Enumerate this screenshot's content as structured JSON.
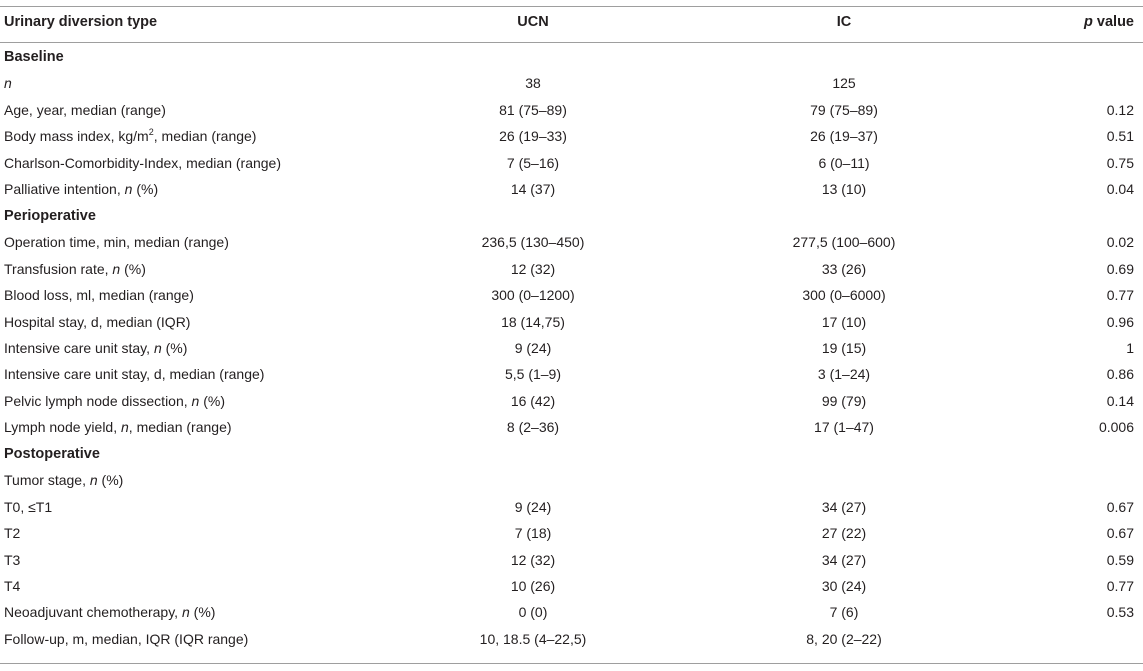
{
  "table": {
    "headers": {
      "col0": "Urinary diversion type",
      "col1": "UCN",
      "col2": "IC",
      "col3_pre": "p",
      "col3_post": " value"
    },
    "rows": [
      {
        "kind": "section",
        "label": "Baseline"
      },
      {
        "kind": "data",
        "label_pre": "",
        "label_it": "n",
        "label_post": "",
        "ucn": "38",
        "ic": "125",
        "p": ""
      },
      {
        "kind": "data",
        "label_pre": "Age, year, median (range)",
        "ucn": "81 (75–89)",
        "ic": "79 (75–89)",
        "p": "0.12"
      },
      {
        "kind": "data",
        "label_pre": "Body mass index, kg/m",
        "label_sup": "2",
        "label_post": ", median (range)",
        "ucn": "26 (19–33)",
        "ic": "26 (19–37)",
        "p": "0.51"
      },
      {
        "kind": "data",
        "label_pre": "Charlson-Comorbidity-Index, median (range)",
        "ucn": "7 (5–16)",
        "ic": "6 (0–11)",
        "p": "0.75"
      },
      {
        "kind": "data",
        "label_pre": "Palliative intention, ",
        "label_it": "n",
        "label_post": " (%)",
        "ucn": "14 (37)",
        "ic": "13 (10)",
        "p": "0.04"
      },
      {
        "kind": "section",
        "label": "Perioperative"
      },
      {
        "kind": "data",
        "label_pre": "Operation time, min, median (range)",
        "ucn": "236,5 (130–450)",
        "ic": "277,5 (100–600)",
        "p": "0.02"
      },
      {
        "kind": "data",
        "label_pre": "Transfusion rate, ",
        "label_it": "n",
        "label_post": " (%)",
        "ucn": "12 (32)",
        "ic": "33 (26)",
        "p": "0.69"
      },
      {
        "kind": "data",
        "label_pre": "Blood loss, ml, median (range)",
        "ucn": "300 (0–1200)",
        "ic": "300 (0–6000)",
        "p": "0.77"
      },
      {
        "kind": "data",
        "label_pre": "Hospital stay, d, median (IQR)",
        "ucn": "18 (14,75)",
        "ic": "17 (10)",
        "p": "0.96"
      },
      {
        "kind": "data",
        "label_pre": "Intensive care unit stay, ",
        "label_it": "n",
        "label_post": " (%)",
        "ucn": "9 (24)",
        "ic": "19 (15)",
        "p": "1"
      },
      {
        "kind": "data",
        "label_pre": "Intensive care unit stay, d, median (range)",
        "ucn": "5,5 (1–9)",
        "ic": "3 (1–24)",
        "p": "0.86"
      },
      {
        "kind": "data",
        "label_pre": "Pelvic lymph node dissection, ",
        "label_it": "n",
        "label_post": " (%)",
        "ucn": "16 (42)",
        "ic": "99 (79)",
        "p": "0.14"
      },
      {
        "kind": "data",
        "label_pre": "Lymph node yield, ",
        "label_it": "n",
        "label_post": ", median (range)",
        "ucn": "8 (2–36)",
        "ic": "17 (1–47)",
        "p": "0.006"
      },
      {
        "kind": "section",
        "label": "Postoperative"
      },
      {
        "kind": "data",
        "label_pre": "Tumor stage, ",
        "label_it": "n",
        "label_post": " (%)",
        "ucn": "",
        "ic": "",
        "p": ""
      },
      {
        "kind": "data",
        "label_pre": "T0, ≤T1",
        "ucn": "9 (24)",
        "ic": "34 (27)",
        "p": "0.67"
      },
      {
        "kind": "data",
        "label_pre": "T2",
        "ucn": "7 (18)",
        "ic": "27 (22)",
        "p": "0.67"
      },
      {
        "kind": "data",
        "label_pre": "T3",
        "ucn": "12 (32)",
        "ic": "34 (27)",
        "p": "0.59"
      },
      {
        "kind": "data",
        "label_pre": "T4",
        "ucn": "10 (26)",
        "ic": "30 (24)",
        "p": "0.77"
      },
      {
        "kind": "data",
        "label_pre": "Neoadjuvant chemotherapy, ",
        "label_it": "n",
        "label_post": " (%)",
        "ucn": "0 (0)",
        "ic": "7 (6)",
        "p": "0.53"
      },
      {
        "kind": "data",
        "label_pre": "Follow-up, m, median, IQR (IQR range)",
        "ucn": "10, 18.5 (4–22,5)",
        "ic": "8, 20 (2–22)",
        "p": ""
      }
    ]
  }
}
